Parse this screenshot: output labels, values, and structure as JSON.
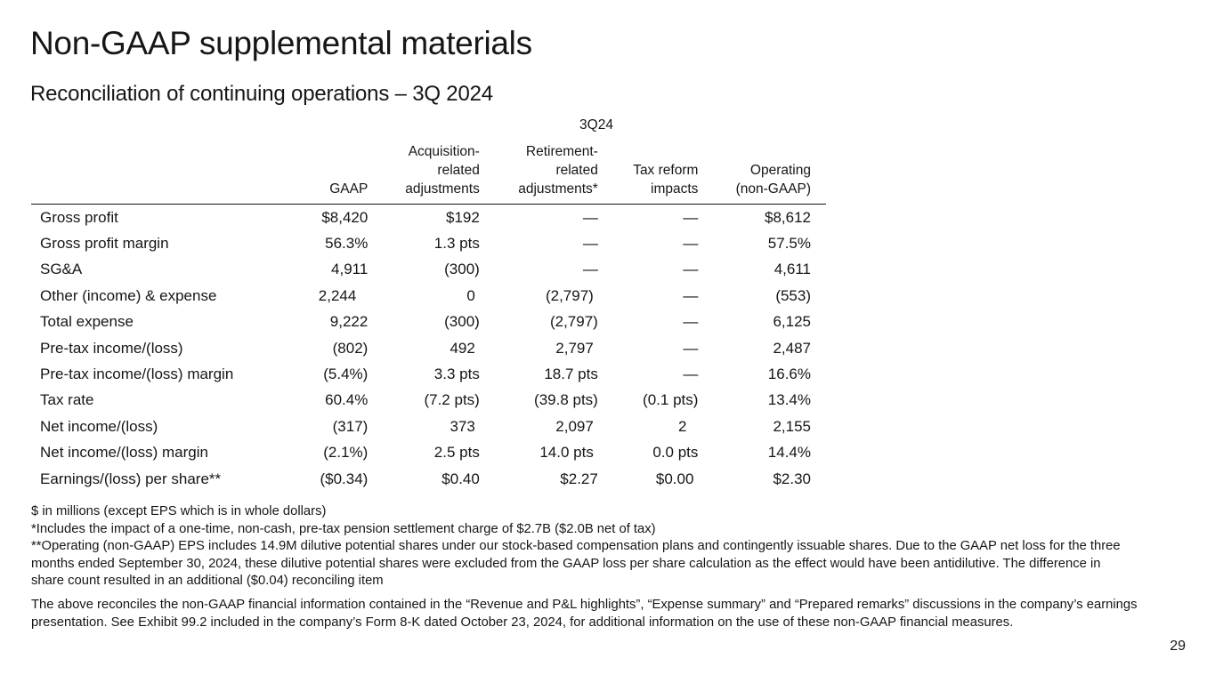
{
  "title": "Non-GAAP supplemental materials",
  "subtitle": "Reconciliation of continuing operations – 3Q 2024",
  "period": "3Q24",
  "columns": [
    "",
    "GAAP",
    "Acquisition-\nrelated\nadjustments",
    "Retirement-\nrelated\nadjustments*",
    "Tax reform\nimpacts",
    "Operating\n(non-GAAP)"
  ],
  "rows": [
    [
      "Gross profit",
      "$8,420",
      "$192",
      "—",
      "—",
      "$8,612"
    ],
    [
      "Gross profit margin",
      "56.3%",
      "1.3 pts",
      "—",
      "—",
      "57.5%"
    ],
    [
      "SG&A",
      "4,911",
      "(300)",
      "—",
      "—",
      "4,611"
    ],
    [
      "Other (income) & expense",
      "2,244",
      "0",
      "(2,797)",
      "—",
      "(553)"
    ],
    [
      "Total expense",
      "9,222",
      "(300)",
      "(2,797)",
      "—",
      "6,125"
    ],
    [
      "Pre-tax income/(loss)",
      "(802)",
      "492",
      "2,797",
      "—",
      "2,487"
    ],
    [
      "Pre-tax income/(loss) margin",
      "(5.4%)",
      "3.3 pts",
      "18.7 pts",
      "—",
      "16.6%"
    ],
    [
      "Tax rate",
      "60.4%",
      "(7.2 pts)",
      "(39.8 pts)",
      "(0.1 pts)",
      "13.4%"
    ],
    [
      "Net income/(loss)",
      "(317)",
      "373",
      "2,097",
      "2",
      "2,155"
    ],
    [
      "Net income/(loss) margin",
      "(2.1%)",
      "2.5 pts",
      "14.0 pts",
      "0.0 pts",
      "14.4%"
    ],
    [
      "Earnings/(loss) per share**",
      "($0.34)",
      "$0.40",
      "$2.27",
      "$0.00",
      "$2.30"
    ]
  ],
  "notes": [
    "$ in millions (except EPS which is in whole dollars)",
    "*Includes the impact of a one-time, non-cash, pre-tax pension settlement charge of $2.7B ($2.0B net of tax)",
    "**Operating (non-GAAP) EPS includes 14.9M dilutive potential shares under our stock-based compensation plans and contingently issuable shares. Due to the GAAP net loss for the three months ended September 30, 2024, these dilutive potential shares were excluded from the GAAP loss per share calculation as the effect would have been antidilutive. The difference in share count resulted in an additional ($0.04) reconciling item"
  ],
  "disclaimer": "The above reconciles the non-GAAP financial information contained in the “Revenue and P&L highlights”, “Expense summary” and “Prepared remarks” discussions in the company’s earnings presentation. See Exhibit 99.2 included in the company’s Form 8-K dated October 23, 2024, for additional information on the use of these non-GAAP financial measures.",
  "page_number": "29"
}
